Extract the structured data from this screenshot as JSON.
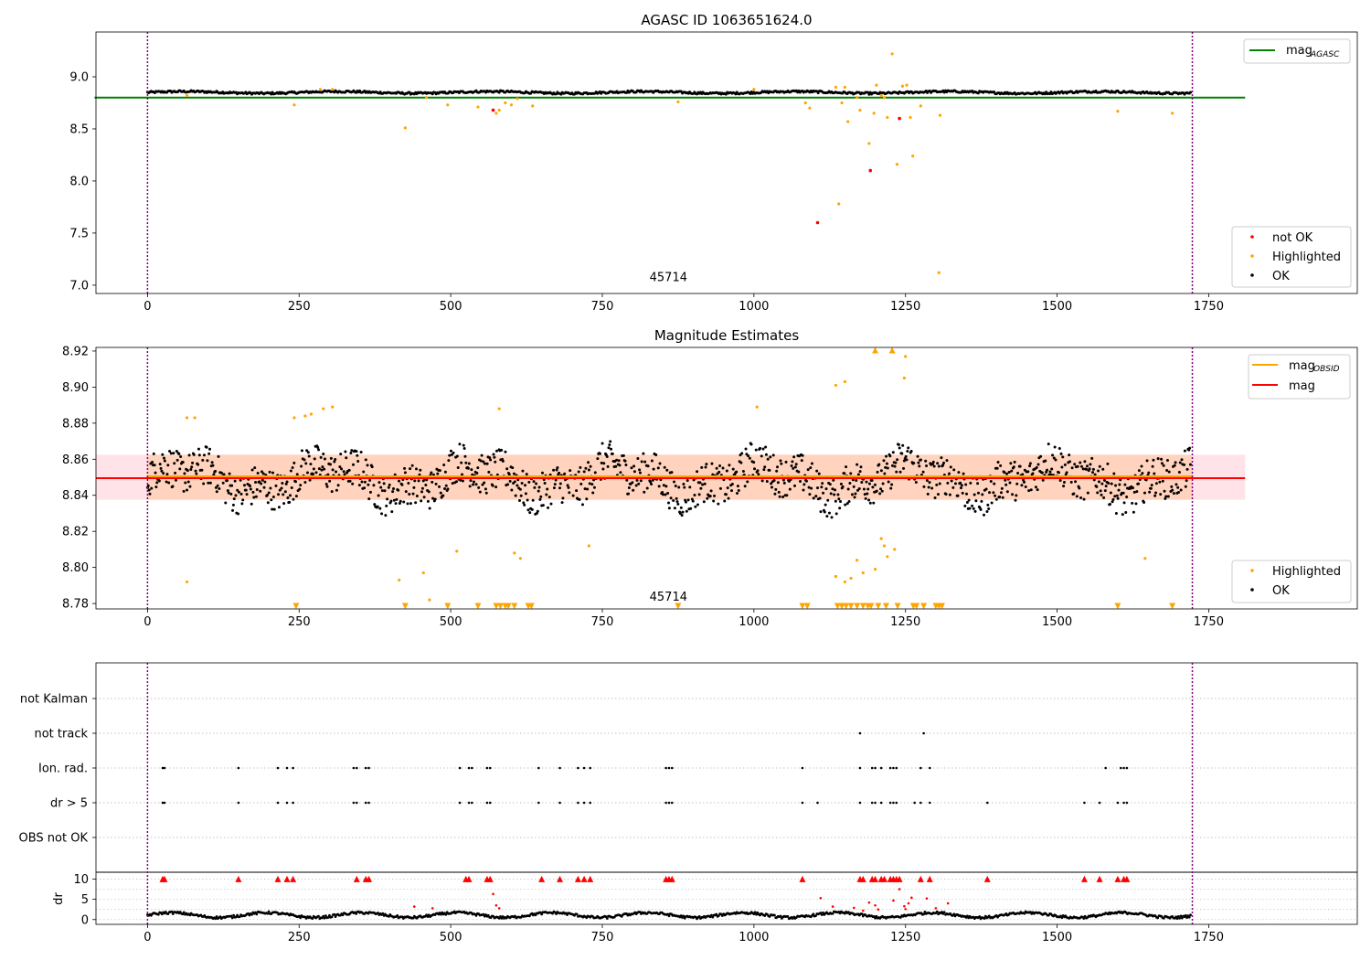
{
  "colors": {
    "ok": "#000000",
    "highlighted": "#ffa500",
    "not_ok": "#ff0000",
    "mag_agasc_line": "#008000",
    "mag_line": "#ff0000",
    "mag_obsid_line": "#ffa500",
    "obsid_marker": "#800080",
    "band_outer": "#ffc0cb",
    "band_inner": "#ffc8a0"
  },
  "chart_data": [
    {
      "type": "scatter",
      "title": "AGASC ID 1063651624.0",
      "xlim": [
        -85,
        1995
      ],
      "ylim": [
        6.92,
        9.43
      ],
      "x_ticks": [
        "0",
        "250",
        "500",
        "750",
        "1000",
        "1250",
        "1500",
        "1750"
      ],
      "y_ticks": [
        "7.0",
        "7.5",
        "8.0",
        "8.5",
        "9.0"
      ],
      "obsid_label": "45714",
      "obsid_boundaries": [
        0,
        1723
      ],
      "mag_agasc": 8.8,
      "mag_agasc_range": [
        0,
        1810
      ],
      "legend_top": [
        {
          "label": "mag",
          "sub": "AGASC"
        }
      ],
      "legend_bottom": [
        "not OK",
        "Highlighted",
        "OK"
      ],
      "ok_baseline": {
        "x_range": [
          0,
          1720
        ],
        "y_mean": 8.85,
        "y_amplitude": 0.015
      },
      "highlighted_points": [
        [
          65,
          8.82
        ],
        [
          242,
          8.73
        ],
        [
          285,
          8.88
        ],
        [
          305,
          8.88
        ],
        [
          425,
          8.51
        ],
        [
          460,
          8.8
        ],
        [
          495,
          8.73
        ],
        [
          545,
          8.71
        ],
        [
          575,
          8.65
        ],
        [
          580,
          8.68
        ],
        [
          590,
          8.75
        ],
        [
          600,
          8.73
        ],
        [
          610,
          8.79
        ],
        [
          635,
          8.72
        ],
        [
          875,
          8.76
        ],
        [
          1000,
          8.88
        ],
        [
          1085,
          8.75
        ],
        [
          1092,
          8.7
        ],
        [
          1135,
          8.9
        ],
        [
          1140,
          7.78
        ],
        [
          1145,
          8.75
        ],
        [
          1150,
          8.9
        ],
        [
          1155,
          8.57
        ],
        [
          1170,
          8.8
        ],
        [
          1175,
          8.68
        ],
        [
          1190,
          8.36
        ],
        [
          1198,
          8.65
        ],
        [
          1202,
          8.92
        ],
        [
          1210,
          8.82
        ],
        [
          1215,
          8.8
        ],
        [
          1220,
          8.61
        ],
        [
          1228,
          9.22
        ],
        [
          1236,
          8.16
        ],
        [
          1245,
          8.91
        ],
        [
          1252,
          8.92
        ],
        [
          1258,
          8.61
        ],
        [
          1262,
          8.24
        ],
        [
          1275,
          8.72
        ],
        [
          1305,
          7.12
        ],
        [
          1307,
          8.63
        ],
        [
          1600,
          8.67
        ],
        [
          1690,
          8.65
        ]
      ],
      "not_ok_points": [
        [
          570,
          8.68
        ],
        [
          1105,
          7.6
        ],
        [
          1192,
          8.1
        ],
        [
          1240,
          8.6
        ]
      ]
    },
    {
      "type": "scatter",
      "title": "Magnitude Estimates",
      "xlim": [
        -85,
        1995
      ],
      "ylim": [
        8.777,
        8.922
      ],
      "x_ticks": [
        "0",
        "250",
        "500",
        "750",
        "1000",
        "1250",
        "1500",
        "1750"
      ],
      "y_ticks": [
        "8.78",
        "8.80",
        "8.82",
        "8.84",
        "8.86",
        "8.88",
        "8.90",
        "8.92"
      ],
      "obsid_label": "45714",
      "mag": 8.8495,
      "mag_obsid": 8.8505,
      "band_outer": [
        8.8375,
        8.8625
      ],
      "band_inner": [
        8.8375,
        8.8625
      ],
      "legend_top": [
        {
          "label": "mag",
          "sub": "OBSID"
        },
        {
          "label": "mag",
          "sub": ""
        }
      ],
      "legend_bottom": [
        "Highlighted",
        "OK"
      ],
      "highlighted_points": [
        [
          65,
          8.792
        ],
        [
          65,
          8.883
        ],
        [
          78,
          8.883
        ],
        [
          242,
          8.883
        ],
        [
          260,
          8.884
        ],
        [
          270,
          8.885
        ],
        [
          290,
          8.888
        ],
        [
          305,
          8.889
        ],
        [
          415,
          8.793
        ],
        [
          455,
          8.797
        ],
        [
          465,
          8.782
        ],
        [
          510,
          8.809
        ],
        [
          580,
          8.888
        ],
        [
          605,
          8.808
        ],
        [
          615,
          8.805
        ],
        [
          728,
          8.812
        ],
        [
          1005,
          8.889
        ],
        [
          1135,
          8.795
        ],
        [
          1135,
          8.901
        ],
        [
          1150,
          8.903
        ],
        [
          1150,
          8.792
        ],
        [
          1160,
          8.794
        ],
        [
          1170,
          8.804
        ],
        [
          1180,
          8.797
        ],
        [
          1200,
          8.799
        ],
        [
          1210,
          8.816
        ],
        [
          1215,
          8.812
        ],
        [
          1220,
          8.806
        ],
        [
          1232,
          8.81
        ],
        [
          1248,
          8.905
        ],
        [
          1250,
          8.917
        ],
        [
          1645,
          8.805
        ]
      ],
      "highlighted_low_markers": [
        245,
        425,
        495,
        545,
        575,
        582,
        590,
        595,
        605,
        628,
        633,
        875,
        1080,
        1088,
        1138,
        1145,
        1152,
        1160,
        1170,
        1180,
        1188,
        1193,
        1205,
        1218,
        1237,
        1263,
        1268,
        1280,
        1300,
        1305,
        1310,
        1600,
        1690
      ],
      "highlighted_high_markers": [
        1200,
        1228
      ]
    },
    {
      "type": "scatter",
      "title": "",
      "xlim": [
        -85,
        1995
      ],
      "x_ticks": [
        "0",
        "250",
        "500",
        "750",
        "1000",
        "1250",
        "1500",
        "1750"
      ],
      "flag_labels": [
        "not Kalman",
        "not track",
        "Ion. rad.",
        "dr > 5",
        "OBS not OK"
      ],
      "flags": {
        "not Kalman": [],
        "not track": [
          1175,
          1280
        ],
        "Ion. rad.": [
          25,
          28,
          150,
          215,
          230,
          240,
          340,
          345,
          360,
          365,
          515,
          530,
          535,
          560,
          565,
          645,
          680,
          710,
          720,
          730,
          855,
          860,
          865,
          1080,
          1175,
          1195,
          1200,
          1210,
          1225,
          1230,
          1235,
          1275,
          1290,
          1580,
          1605,
          1610,
          1615
        ],
        "dr > 5": [
          25,
          28,
          150,
          215,
          230,
          240,
          340,
          345,
          360,
          365,
          515,
          530,
          535,
          560,
          565,
          645,
          680,
          710,
          720,
          730,
          855,
          860,
          865,
          1080,
          1105,
          1175,
          1195,
          1200,
          1210,
          1225,
          1230,
          1235,
          1265,
          1275,
          1290,
          1385,
          1545,
          1570,
          1600,
          1610,
          1615
        ],
        "OBS not OK": []
      },
      "dr_ylabel": "dr",
      "dr_yticks": [
        "0",
        "5",
        "10"
      ],
      "dr_ylim": [
        -0.5,
        11
      ],
      "dr_flagged": [
        25,
        28,
        150,
        215,
        230,
        240,
        345,
        360,
        365,
        525,
        530,
        560,
        565,
        650,
        680,
        710,
        720,
        730,
        855,
        860,
        865,
        1080,
        1175,
        1180,
        1195,
        1200,
        1210,
        1215,
        1225,
        1230,
        1235,
        1240,
        1275,
        1290,
        1385,
        1545,
        1570,
        1600,
        1610,
        1615
      ],
      "dr_scatter_red": [
        [
          570,
          6.3
        ],
        [
          575,
          3.5
        ],
        [
          580,
          2.8
        ],
        [
          440,
          3.2
        ],
        [
          470,
          2.8
        ],
        [
          1110,
          5.3
        ],
        [
          1130,
          3.2
        ],
        [
          1165,
          2.9
        ],
        [
          1190,
          4.2
        ],
        [
          1200,
          3.5
        ],
        [
          1205,
          2.5
        ],
        [
          1230,
          4.7
        ],
        [
          1240,
          7.5
        ],
        [
          1248,
          3.3
        ],
        [
          1255,
          4.0
        ],
        [
          1260,
          5.4
        ],
        [
          1285,
          5.2
        ],
        [
          1300,
          2.8
        ],
        [
          1320,
          4.0
        ],
        [
          1180,
          2.2
        ],
        [
          1250,
          2.6
        ]
      ]
    }
  ]
}
